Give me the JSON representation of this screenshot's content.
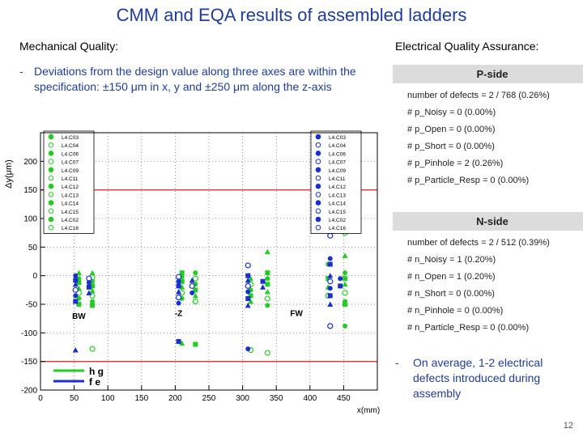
{
  "slide": {
    "title": "CMM and EQA results of assembled ladders",
    "page_number": "12"
  },
  "mechanical": {
    "heading": "Mechanical Quality:",
    "bullet_dash": "-",
    "bullet": "Deviations from the design value along three axes are within the specification: ±150 μm in x, y and ±250 μm along the z-axis"
  },
  "electrical": {
    "heading": "Electrical Quality Assurance:",
    "p_side": {
      "header": "P-side",
      "lines": [
        "number of defects = 2 / 768 (0.26%)",
        "# p_Noisy = 0 (0.00%)",
        "# p_Open = 0 (0.00%)",
        "# p_Short = 0 (0.00%)",
        "# p_Pinhole = 2 (0.26%)",
        "# p_Particle_Resp = 0 (0.00%)"
      ]
    },
    "n_side": {
      "header": "N-side",
      "lines": [
        "number of defects = 2 / 512 (0.39%)",
        "# n_Noisy = 1 (0.20%)",
        "# n_Open = 1 (0.20%)",
        "# n_Short = 0 (0.00%)",
        "# n_Pinhole = 0 (0.00%)",
        "# n_Particle_Resp = 0 (0.00%)"
      ]
    },
    "bullet_dash": "-",
    "bullet": "On average, 1-2 electrical defects introduced during assembly"
  },
  "chart_data": {
    "type": "scatter",
    "title": "",
    "xlabel": "x(mm)",
    "ylabel": "Δy(μm)",
    "xlim": [
      0,
      500
    ],
    "ylim": [
      -200,
      250
    ],
    "x_ticks": [
      0,
      50,
      100,
      150,
      200,
      250,
      300,
      350,
      400,
      450
    ],
    "y_ticks": [
      -200,
      -150,
      -100,
      -50,
      0,
      50,
      100,
      150,
      200
    ],
    "spec_limits": [
      150,
      -150
    ],
    "spec_color": "#e03030",
    "annotations": [
      {
        "text": "BW",
        "x": 57,
        "y": -70
      },
      {
        "text": "-Z",
        "x": 205,
        "y": -65
      },
      {
        "text": "FW",
        "x": 380,
        "y": -65
      }
    ],
    "legend_left": [
      "L4.C03",
      "L4.C04",
      "L4.C06",
      "L4.C07",
      "L4.C09",
      "L4.C11",
      "L4.C12",
      "L4.C13",
      "L4.C14",
      "L4.C15",
      "L4.C02",
      "L4.C16"
    ],
    "legend_right": [
      "L4.C03",
      "L4.C04",
      "L4.C06",
      "L4.C07",
      "L4.C09",
      "L4.C11",
      "L4.C12",
      "L4.C13",
      "L4.C14",
      "L4.C15",
      "L4.C02",
      "L4.C16"
    ],
    "series_legend": [
      {
        "name": "hg",
        "color": "#22cc22"
      },
      {
        "name": "fe",
        "color": "#1a2fcc"
      }
    ],
    "series": [
      {
        "name": "hg",
        "color": "#22cc22",
        "points": [
          [
            57,
            -5
          ],
          [
            57,
            -12
          ],
          [
            57,
            -22
          ],
          [
            57,
            -30
          ],
          [
            57,
            -40
          ],
          [
            57,
            -50
          ],
          [
            57,
            5
          ],
          [
            77,
            -3
          ],
          [
            77,
            -10
          ],
          [
            77,
            -18
          ],
          [
            77,
            -26
          ],
          [
            77,
            -35
          ],
          [
            77,
            -45
          ],
          [
            77,
            -52
          ],
          [
            77,
            5
          ],
          [
            77,
            -128
          ],
          [
            210,
            -2
          ],
          [
            210,
            -10
          ],
          [
            210,
            -20
          ],
          [
            210,
            -30
          ],
          [
            210,
            -40
          ],
          [
            210,
            5
          ],
          [
            210,
            -118
          ],
          [
            230,
            -5
          ],
          [
            230,
            -15
          ],
          [
            230,
            -25
          ],
          [
            230,
            -35
          ],
          [
            230,
            -45
          ],
          [
            230,
            5
          ],
          [
            230,
            -120
          ],
          [
            312,
            -5
          ],
          [
            312,
            -15
          ],
          [
            312,
            -25
          ],
          [
            312,
            -35
          ],
          [
            312,
            -45
          ],
          [
            312,
            -130
          ],
          [
            337,
            -5
          ],
          [
            337,
            -15
          ],
          [
            337,
            -28
          ],
          [
            337,
            -40
          ],
          [
            337,
            -52
          ],
          [
            337,
            5
          ],
          [
            337,
            42
          ],
          [
            337,
            -135
          ],
          [
            427,
            20
          ],
          [
            427,
            -5
          ],
          [
            427,
            -20
          ],
          [
            427,
            -35
          ],
          [
            452,
            5
          ],
          [
            452,
            -5
          ],
          [
            452,
            -15
          ],
          [
            452,
            -30
          ],
          [
            452,
            -45
          ],
          [
            452,
            -50
          ],
          [
            452,
            35
          ],
          [
            452,
            75
          ],
          [
            452,
            -88
          ]
        ]
      },
      {
        "name": "fe",
        "color": "#1a2fcc",
        "points": [
          [
            52,
            0
          ],
          [
            52,
            -8
          ],
          [
            52,
            -15
          ],
          [
            52,
            -25
          ],
          [
            52,
            -35
          ],
          [
            52,
            -45
          ],
          [
            52,
            -130
          ],
          [
            72,
            -5
          ],
          [
            72,
            -12
          ],
          [
            72,
            -20
          ],
          [
            72,
            -30
          ],
          [
            205,
            -2
          ],
          [
            205,
            -10
          ],
          [
            205,
            -18
          ],
          [
            205,
            -28
          ],
          [
            205,
            -38
          ],
          [
            205,
            -48
          ],
          [
            205,
            -115
          ],
          [
            225,
            -8
          ],
          [
            225,
            -18
          ],
          [
            225,
            -30
          ],
          [
            308,
            0
          ],
          [
            308,
            -8
          ],
          [
            308,
            -18
          ],
          [
            308,
            -28
          ],
          [
            308,
            -40
          ],
          [
            308,
            -52
          ],
          [
            308,
            18
          ],
          [
            308,
            -128
          ],
          [
            330,
            -10
          ],
          [
            330,
            -20
          ],
          [
            430,
            70
          ],
          [
            430,
            30
          ],
          [
            430,
            20
          ],
          [
            430,
            0
          ],
          [
            430,
            -10
          ],
          [
            430,
            -22
          ],
          [
            430,
            -35
          ],
          [
            430,
            -50
          ],
          [
            430,
            -88
          ],
          [
            445,
            -5
          ],
          [
            445,
            -18
          ]
        ]
      }
    ]
  }
}
